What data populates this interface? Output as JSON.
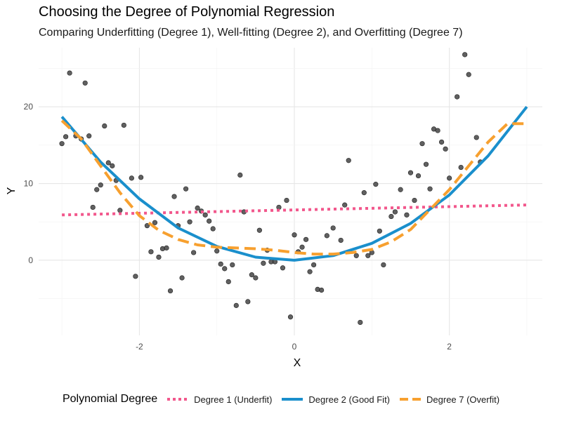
{
  "chart_data": {
    "type": "scatter",
    "title": "Choosing the Degree of Polynomial Regression",
    "subtitle": "Comparing Underfitting (Degree 1), Well-fitting (Degree 2), and Overfitting (Degree 7)",
    "xlabel": "X",
    "ylabel": "Y",
    "xlim": [
      -3.3,
      3.2
    ],
    "ylim": [
      -9.8,
      27.7
    ],
    "x_ticks": [
      -2,
      0,
      2
    ],
    "y_ticks": [
      0,
      10,
      20
    ],
    "grid": true,
    "legend_position": "bottom",
    "legend_title": "Polynomial Degree",
    "points": [
      [
        -3.0,
        15.2
      ],
      [
        -2.95,
        16.1
      ],
      [
        -2.9,
        24.4
      ],
      [
        -2.82,
        16.2
      ],
      [
        -2.75,
        15.8
      ],
      [
        -2.7,
        23.1
      ],
      [
        -2.65,
        16.2
      ],
      [
        -2.6,
        6.9
      ],
      [
        -2.55,
        9.2
      ],
      [
        -2.5,
        9.8
      ],
      [
        -2.45,
        17.5
      ],
      [
        -2.4,
        12.7
      ],
      [
        -2.35,
        12.3
      ],
      [
        -2.3,
        10.4
      ],
      [
        -2.25,
        6.5
      ],
      [
        -2.2,
        17.6
      ],
      [
        -2.1,
        10.7
      ],
      [
        -2.05,
        -2.1
      ],
      [
        -1.98,
        10.8
      ],
      [
        -1.9,
        4.5
      ],
      [
        -1.85,
        1.1
      ],
      [
        -1.8,
        4.9
      ],
      [
        -1.75,
        0.4
      ],
      [
        -1.7,
        1.5
      ],
      [
        -1.65,
        1.6
      ],
      [
        -1.6,
        -4.0
      ],
      [
        -1.55,
        8.3
      ],
      [
        -1.5,
        4.5
      ],
      [
        -1.45,
        -2.3
      ],
      [
        -1.4,
        9.3
      ],
      [
        -1.35,
        5.0
      ],
      [
        -1.3,
        1.0
      ],
      [
        -1.25,
        6.8
      ],
      [
        -1.2,
        6.4
      ],
      [
        -1.15,
        5.9
      ],
      [
        -1.1,
        5.1
      ],
      [
        -1.05,
        4.1
      ],
      [
        -1.0,
        1.2
      ],
      [
        -0.95,
        -0.5
      ],
      [
        -0.9,
        -1.1
      ],
      [
        -0.85,
        -2.8
      ],
      [
        -0.8,
        -0.6
      ],
      [
        -0.75,
        -5.9
      ],
      [
        -0.7,
        11.1
      ],
      [
        -0.65,
        6.3
      ],
      [
        -0.6,
        -5.4
      ],
      [
        -0.55,
        -1.9
      ],
      [
        -0.5,
        -2.3
      ],
      [
        -0.45,
        3.9
      ],
      [
        -0.4,
        -0.4
      ],
      [
        -0.35,
        1.3
      ],
      [
        -0.3,
        -0.2
      ],
      [
        -0.25,
        -0.2
      ],
      [
        -0.2,
        6.9
      ],
      [
        -0.15,
        -1.0
      ],
      [
        -0.1,
        7.8
      ],
      [
        -0.05,
        -7.4
      ],
      [
        0.0,
        3.3
      ],
      [
        0.05,
        1.1
      ],
      [
        0.1,
        1.7
      ],
      [
        0.15,
        2.7
      ],
      [
        0.2,
        -1.5
      ],
      [
        0.25,
        -0.6
      ],
      [
        0.3,
        -3.8
      ],
      [
        0.35,
        -3.9
      ],
      [
        0.42,
        3.2
      ],
      [
        0.5,
        4.2
      ],
      [
        0.6,
        2.6
      ],
      [
        0.65,
        7.2
      ],
      [
        0.7,
        13.0
      ],
      [
        0.8,
        0.6
      ],
      [
        0.85,
        -8.1
      ],
      [
        0.9,
        8.8
      ],
      [
        0.95,
        0.6
      ],
      [
        1.0,
        1.0
      ],
      [
        1.05,
        9.9
      ],
      [
        1.1,
        3.8
      ],
      [
        1.15,
        -0.6
      ],
      [
        1.25,
        5.7
      ],
      [
        1.3,
        6.3
      ],
      [
        1.37,
        9.2
      ],
      [
        1.45,
        5.9
      ],
      [
        1.5,
        11.4
      ],
      [
        1.55,
        7.8
      ],
      [
        1.6,
        11.0
      ],
      [
        1.65,
        15.2
      ],
      [
        1.7,
        12.5
      ],
      [
        1.75,
        9.3
      ],
      [
        1.8,
        17.1
      ],
      [
        1.85,
        16.9
      ],
      [
        1.9,
        15.4
      ],
      [
        1.95,
        14.5
      ],
      [
        2.0,
        10.7
      ],
      [
        2.1,
        21.3
      ],
      [
        2.15,
        12.1
      ],
      [
        2.2,
        26.8
      ],
      [
        2.25,
        24.2
      ],
      [
        2.35,
        16.0
      ],
      [
        2.4,
        12.8
      ]
    ],
    "series": [
      {
        "name": "Degree 1 (Underfit)",
        "color": "#F2578C",
        "style": "dotted",
        "x": [
          -3,
          3
        ],
        "y": [
          5.9,
          7.2
        ]
      },
      {
        "name": "Degree 2 (Good Fit)",
        "color": "#1A8FCC",
        "style": "solid",
        "x": [
          -3.0,
          -2.5,
          -2.0,
          -1.5,
          -1.0,
          -0.5,
          0.0,
          0.5,
          1.0,
          1.5,
          2.0,
          2.5,
          3.0
        ],
        "y": [
          18.7,
          12.8,
          8.0,
          4.2,
          1.8,
          0.4,
          0.0,
          0.6,
          2.2,
          4.8,
          8.5,
          13.6,
          20.0
        ]
      },
      {
        "name": "Degree 7 (Overfit)",
        "color": "#F7A02F",
        "style": "dashed",
        "x": [
          -3.0,
          -2.75,
          -2.5,
          -2.25,
          -2.0,
          -1.75,
          -1.5,
          -1.25,
          -1.0,
          -0.75,
          -0.5,
          -0.25,
          0.0,
          0.25,
          0.5,
          0.75,
          1.0,
          1.25,
          1.5,
          1.75,
          2.0,
          2.25,
          2.5,
          2.75,
          3.0
        ],
        "y": [
          18.2,
          15.8,
          12.3,
          8.8,
          5.8,
          3.9,
          2.7,
          2.0,
          1.7,
          1.6,
          1.5,
          1.3,
          1.0,
          0.8,
          0.8,
          1.0,
          1.4,
          2.4,
          4.0,
          6.6,
          9.2,
          12.3,
          15.4,
          17.8,
          17.8
        ]
      }
    ]
  }
}
